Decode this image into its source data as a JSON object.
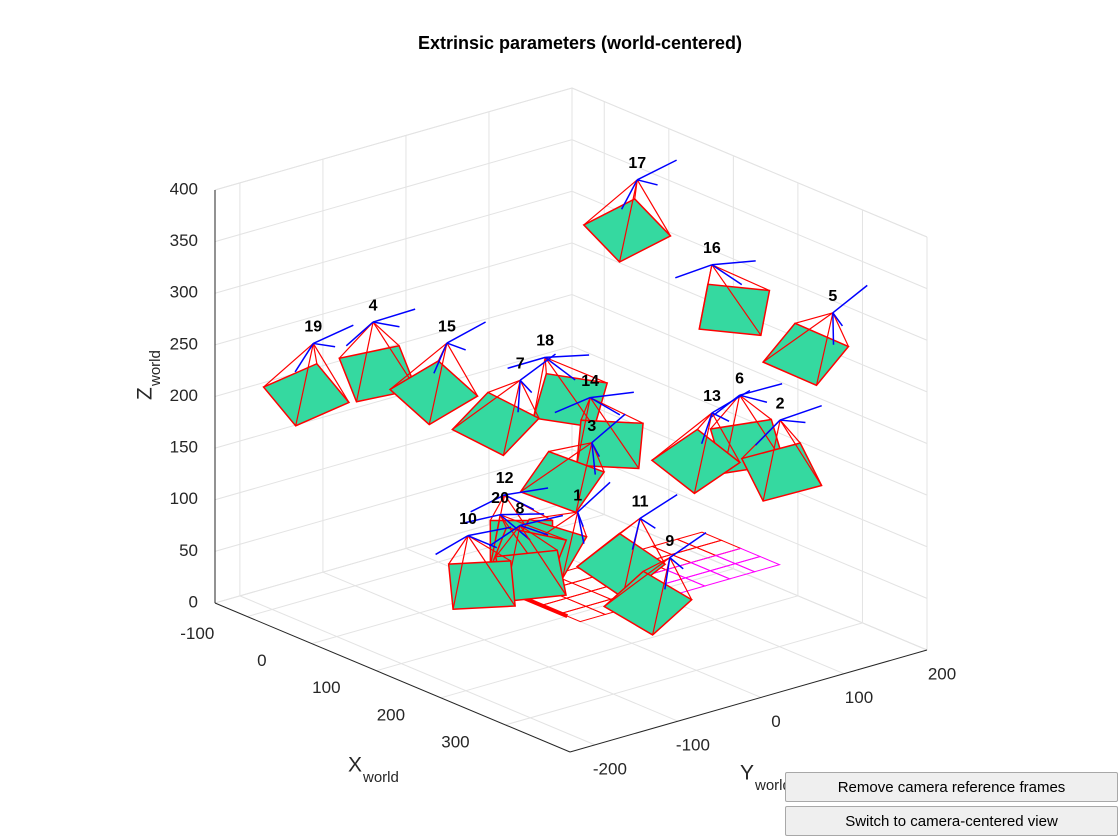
{
  "chart_data": {
    "type": "extrinsic3d",
    "title": "Extrinsic parameters (world-centered)",
    "xlabel": "X",
    "xlabel_sub": "world",
    "ylabel": "Y",
    "ylabel_sub": "world",
    "zlabel": "Z",
    "zlabel_sub": "world",
    "xlim": [
      -150,
      400
    ],
    "ylim": [
      -230,
      200
    ],
    "zlim": [
      0,
      400
    ],
    "xticks": [
      -100,
      0,
      100,
      200,
      300
    ],
    "yticks": [
      -200,
      -100,
      0,
      100,
      200
    ],
    "zticks": [
      0,
      50,
      100,
      150,
      200,
      250,
      300,
      350,
      400
    ],
    "grid": true,
    "pyramid_color": "#35d9a0",
    "edge_color": "#ff0000",
    "frame_color": "#0000ff",
    "cameras": [
      {
        "label": 1,
        "x": 116,
        "y": 0,
        "z": 105
      },
      {
        "label": 2,
        "x": 211,
        "y": 170,
        "z": 180
      },
      {
        "label": 3,
        "x": 138,
        "y": 0,
        "z": 178
      },
      {
        "label": 4,
        "x": -8,
        "y": -150,
        "z": 291
      },
      {
        "label": 5,
        "x": 267,
        "y": 190,
        "z": 294
      },
      {
        "label": 6,
        "x": 174,
        "y": 150,
        "z": 199
      },
      {
        "label": 7,
        "x": 117,
        "y": -70,
        "z": 249
      },
      {
        "label": 8,
        "x": 91,
        "y": -50,
        "z": 97
      },
      {
        "label": 9,
        "x": 233,
        "y": 20,
        "z": 87
      },
      {
        "label": 10,
        "x": 49,
        "y": -80,
        "z": 83
      },
      {
        "label": 11,
        "x": 187,
        "y": 20,
        "z": 113
      },
      {
        "label": 12,
        "x": 80,
        "y": -60,
        "z": 126
      },
      {
        "label": 13,
        "x": 157,
        "y": 130,
        "z": 182
      },
      {
        "label": 14,
        "x": 174,
        "y": -30,
        "z": 238
      },
      {
        "label": 15,
        "x": 55,
        "y": -110,
        "z": 278
      },
      {
        "label": 16,
        "x": 131,
        "y": 150,
        "z": 314
      },
      {
        "label": 17,
        "x": 54,
        "y": 120,
        "z": 383
      },
      {
        "label": 18,
        "x": 130,
        "y": -50,
        "z": 270
      },
      {
        "label": 19,
        "x": -62,
        "y": -180,
        "z": 263
      },
      {
        "label": 20,
        "x": 73,
        "y": -60,
        "z": 105
      }
    ]
  },
  "buttons": [
    "Remove camera reference frames",
    "Switch to camera-centered view"
  ]
}
